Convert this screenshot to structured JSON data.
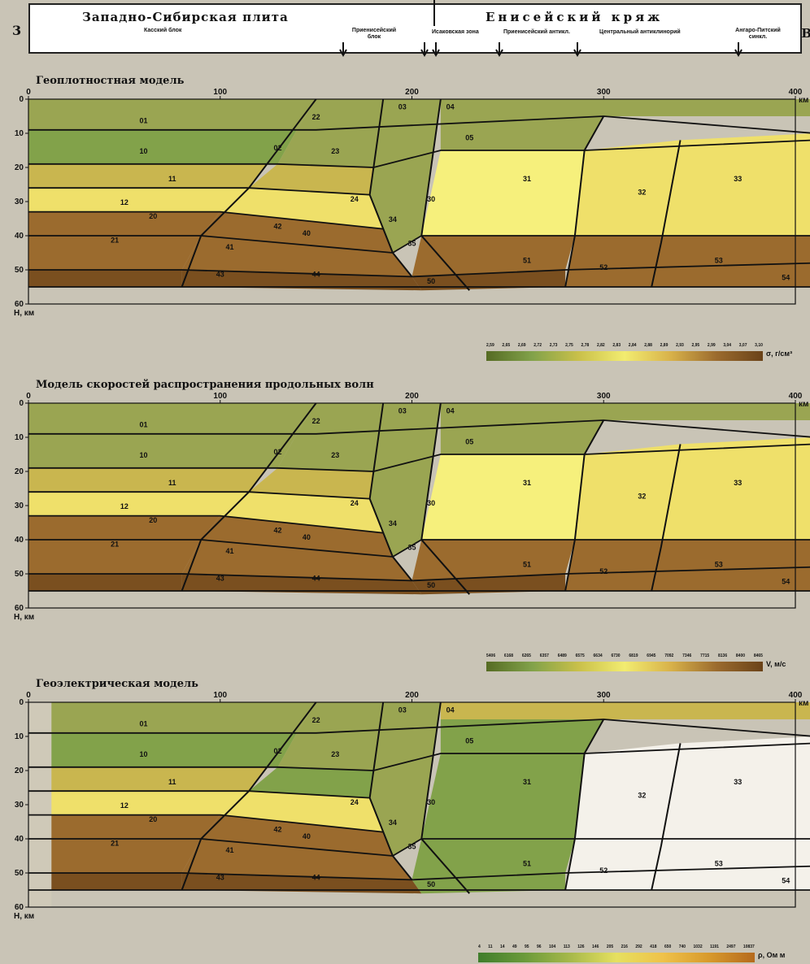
{
  "header": {
    "figure_number": "3",
    "west_title": "Западно-Сибирская плита",
    "east_title": "Енисейский кряж",
    "edge_label": "В",
    "subunits": [
      "Касский блок",
      "Приенисейский блок",
      "Исаковская зона",
      "Приенисейский антикл.",
      "Центральный антиклинорий",
      "Ангаро-Питский синкл."
    ]
  },
  "axes": {
    "x_ticks": [
      "0",
      "100",
      "200",
      "300",
      "400"
    ],
    "x_unit": "км",
    "y_ticks": [
      "0",
      "10",
      "20",
      "30",
      "40",
      "50",
      "60"
    ],
    "y_unit": "H, км"
  },
  "panels": [
    {
      "title": "Геоплотностная модель",
      "legend_values": [
        "2,59",
        "2,65",
        "2,69",
        "2,72",
        "2,73",
        "2,75",
        "2,78",
        "2,82",
        "2,83",
        "2,84",
        "2,88",
        "2,89",
        "2,93",
        "2,95",
        "2,99",
        "3,04",
        "3,07",
        "3,10"
      ],
      "legend_unit": "σ, г/см³"
    },
    {
      "title": "Модель скоростей распространения продольных волн",
      "legend_values": [
        "5406",
        "6168",
        "6265",
        "6357",
        "6489",
        "6575",
        "6634",
        "6730",
        "6819",
        "6945",
        "7092",
        "7346",
        "7715",
        "8136",
        "8400",
        "8465"
      ],
      "legend_unit": "V, м/с"
    },
    {
      "title": "Геоэлектрическая модель",
      "legend_values": [
        "4",
        "11",
        "14",
        "49",
        "95",
        "96",
        "104",
        "113",
        "126",
        "146",
        "205",
        "216",
        "292",
        "418",
        "650",
        "740",
        "1032",
        "1191",
        "2497",
        "10837"
      ],
      "legend_unit": "ρ, Ом м"
    }
  ],
  "block_labels": [
    "01",
    "02",
    "03",
    "04",
    "05",
    "10",
    "11",
    "12",
    "20",
    "21",
    "22",
    "23",
    "24",
    "30",
    "31",
    "32",
    "33",
    "34",
    "35",
    "40",
    "41",
    "42",
    "43",
    "44",
    "50",
    "51",
    "52",
    "53",
    "54"
  ],
  "colors": {
    "olive": "#9aa552",
    "khaki": "#c9b64f",
    "yellow": "#efe06a",
    "pale": "#f6f07c",
    "brown": "#9b6b2e",
    "darkbrown": "#7a4f1f",
    "green": "#82a24a"
  }
}
